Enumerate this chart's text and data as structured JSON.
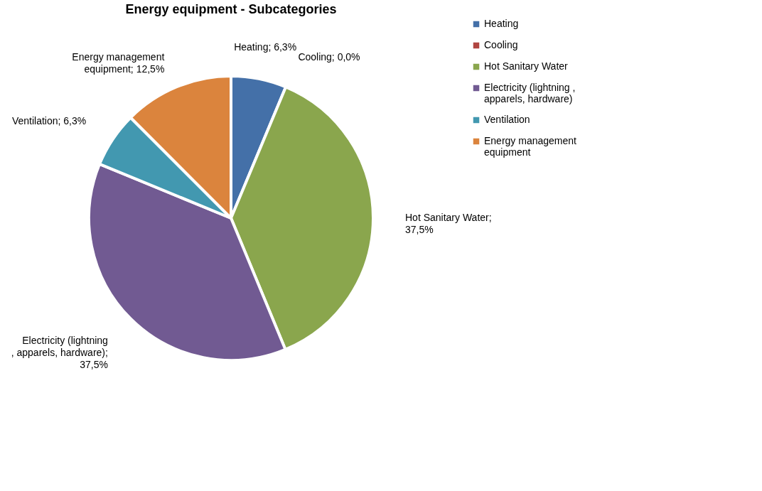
{
  "chart_data": {
    "type": "pie",
    "title": "Energy equipment - Subcategories",
    "categories": [
      "Heating",
      "Cooling",
      "Hot Sanitary Water",
      "Electricity (lightning , apparels, hardware)",
      "Ventilation",
      "Energy management equipment"
    ],
    "values": [
      6.3,
      0.0,
      37.5,
      37.5,
      6.3,
      12.5
    ],
    "colors": [
      "#4470a8",
      "#b04541",
      "#8aa64d",
      "#715a92",
      "#4298b0",
      "#db843d"
    ],
    "value_labels": [
      "Heating; 6,3%",
      "Cooling; 0,0%",
      "Hot Sanitary Water; 37,5%",
      "Electricity (lightning , apparels, hardware); 37,5%",
      "Ventilation; 6,3%",
      "Energy management equipment; 12,5%"
    ],
    "legend": "right"
  }
}
